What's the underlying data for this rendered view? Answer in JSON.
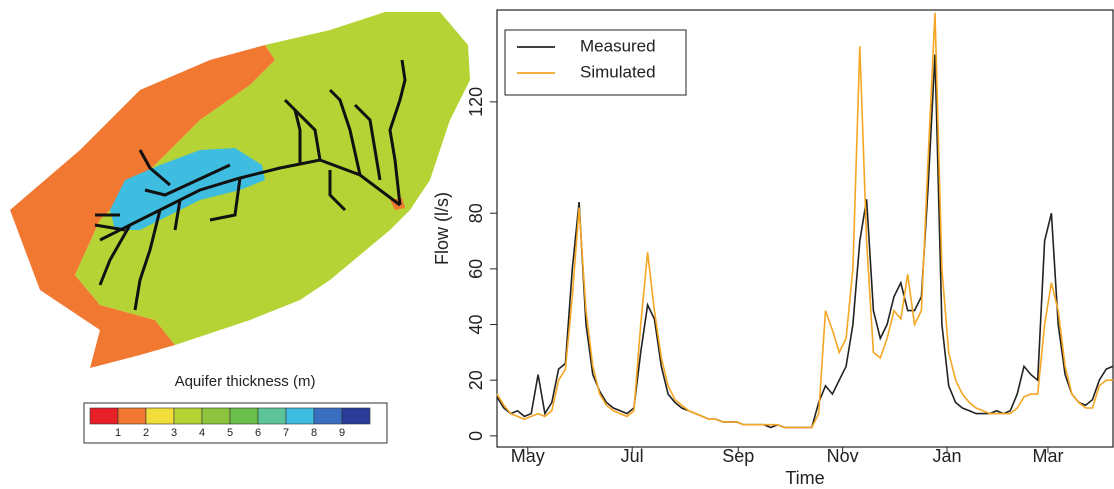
{
  "map": {
    "title": "Aquifer thickness (m)",
    "legend": {
      "colors": [
        "#e8202a",
        "#f07830",
        "#f2de3a",
        "#b5d334",
        "#8cc43c",
        "#6abf4b",
        "#5dc49a",
        "#3ebde0",
        "#3a6fc0",
        "#2a3b9a"
      ],
      "labels": [
        "1",
        "2",
        "3",
        "4",
        "5",
        "6",
        "7",
        "8",
        "9"
      ]
    }
  },
  "chart_data": {
    "type": "line",
    "x_label": "Time",
    "y_label": "Flow (l/s)",
    "x": [
      -18,
      -14,
      -10,
      -6,
      -2,
      2,
      6,
      10,
      14,
      18,
      22,
      26,
      30,
      34,
      38,
      42,
      46,
      50,
      54,
      58,
      62,
      66,
      70,
      74,
      78,
      82,
      86,
      90,
      94,
      98,
      102,
      106,
      110,
      114,
      118,
      122,
      126,
      130,
      134,
      138,
      142,
      146,
      150,
      154,
      158,
      162,
      166,
      170,
      174,
      178,
      182,
      186,
      190,
      194,
      198,
      202,
      206,
      210,
      214,
      218,
      222,
      226,
      230,
      234,
      238,
      242,
      246,
      250,
      254,
      258,
      262,
      266,
      270,
      274,
      278,
      282,
      286,
      290,
      294,
      298,
      302,
      306,
      310,
      314,
      318,
      322,
      326,
      330,
      334,
      338,
      342
    ],
    "series": [
      {
        "name": "Measured",
        "color": "#222222",
        "values": [
          14,
          10,
          8,
          9,
          7,
          8,
          22,
          8,
          12,
          24,
          26,
          60,
          84,
          40,
          22,
          16,
          12,
          10,
          9,
          8,
          10,
          30,
          47,
          42,
          25,
          15,
          12,
          10,
          9,
          8,
          7,
          6,
          6,
          5,
          5,
          5,
          4,
          4,
          4,
          4,
          3,
          4,
          3,
          3,
          3,
          3,
          3,
          12,
          18,
          15,
          20,
          25,
          40,
          70,
          85,
          45,
          35,
          40,
          50,
          55,
          45,
          45,
          50,
          90,
          137,
          40,
          18,
          12,
          10,
          9,
          8,
          8,
          8,
          9,
          8,
          9,
          15,
          25,
          22,
          20,
          70,
          80,
          40,
          22,
          15,
          12,
          11,
          13,
          20,
          24,
          25
        ]
      },
      {
        "name": "Simulated",
        "color": "#f5a623",
        "values": [
          15,
          11,
          8,
          7,
          6,
          7,
          8,
          7,
          9,
          20,
          24,
          50,
          82,
          45,
          25,
          15,
          11,
          9,
          8,
          7,
          9,
          40,
          66,
          45,
          28,
          18,
          13,
          11,
          9,
          8,
          7,
          6,
          6,
          5,
          5,
          5,
          4,
          4,
          4,
          4,
          4,
          4,
          3,
          3,
          3,
          3,
          3,
          8,
          45,
          38,
          30,
          35,
          60,
          140,
          70,
          30,
          28,
          35,
          45,
          42,
          58,
          40,
          45,
          100,
          152,
          60,
          30,
          20,
          15,
          12,
          10,
          9,
          8,
          8,
          8,
          8,
          10,
          14,
          15,
          15,
          40,
          55,
          45,
          25,
          15,
          12,
          10,
          10,
          18,
          20,
          20
        ]
      }
    ],
    "xlim": [
      -18,
      342
    ],
    "ylim": [
      -4,
      153
    ],
    "xticks": [
      {
        "value": 0,
        "label": "May"
      },
      {
        "value": 61,
        "label": "Jul"
      },
      {
        "value": 123,
        "label": "Sep"
      },
      {
        "value": 184,
        "label": "Nov"
      },
      {
        "value": 245,
        "label": "Jan"
      },
      {
        "value": 304,
        "label": "Mar"
      }
    ],
    "yticks": [
      0,
      20,
      40,
      60,
      80,
      120
    ],
    "legend": "top-left"
  }
}
